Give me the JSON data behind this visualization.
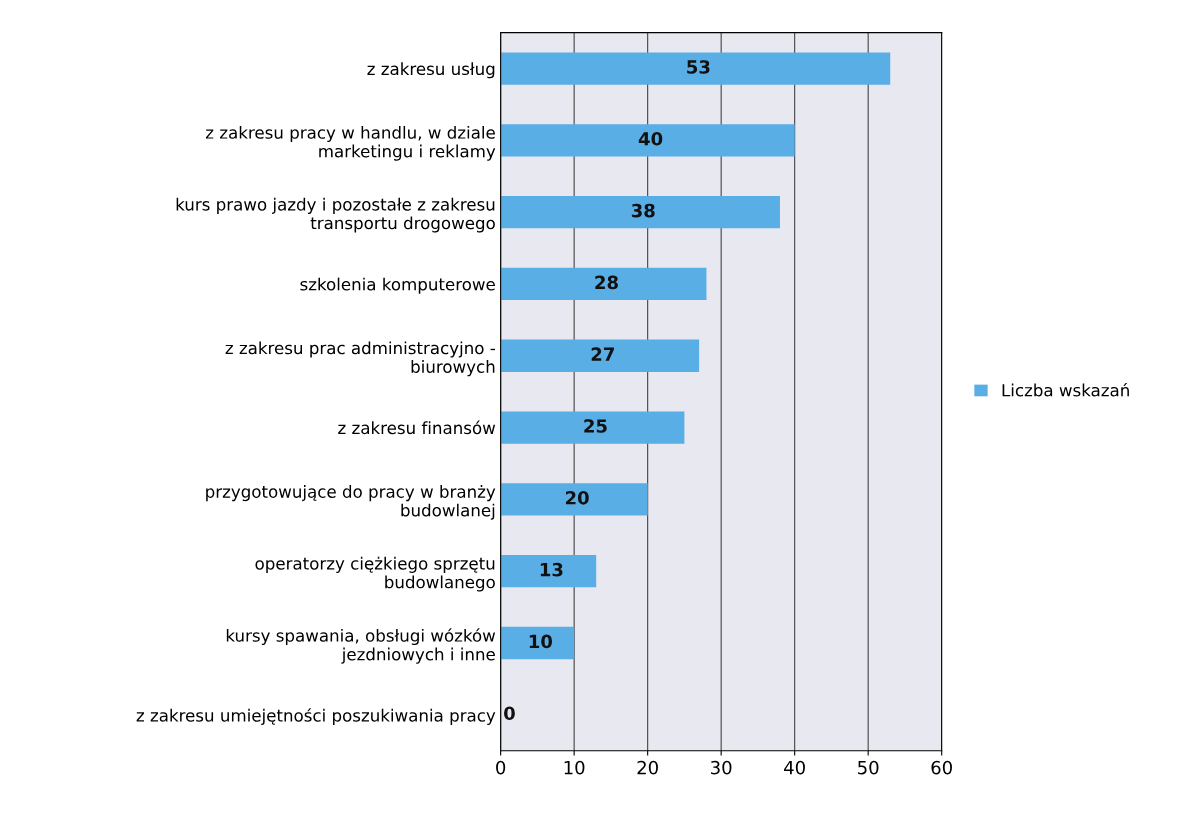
{
  "chart_data": {
    "type": "bar",
    "orientation": "horizontal",
    "categories": [
      "z zakresu usług",
      "z zakresu pracy w handlu, w dziale\nmarketingu i reklamy",
      "kurs prawo jazdy i pozostałe z zakresu\ntransportu drogowego",
      "szkolenia komputerowe",
      "z zakresu prac administracyjno -\nbiurowych",
      "z zakresu finansów",
      "przygotowujące do pracy w branży\nbudowlanej",
      "operatorzy ciężkiego sprzętu\nbudowlanego",
      "kursy spawania, obsługi wózków\njezdniowych i inne",
      "z zakresu umiejętności poszukiwania pracy"
    ],
    "series": [
      {
        "name": "Liczba wskazań",
        "color": "#5aaee6",
        "values": [
          53,
          40,
          38,
          28,
          27,
          25,
          20,
          13,
          10,
          0
        ]
      }
    ],
    "xlim": [
      0,
      60
    ],
    "xticks": [
      0,
      10,
      20,
      30,
      40,
      50,
      60
    ],
    "grid": "x",
    "legend": "right",
    "data_labels": true
  }
}
